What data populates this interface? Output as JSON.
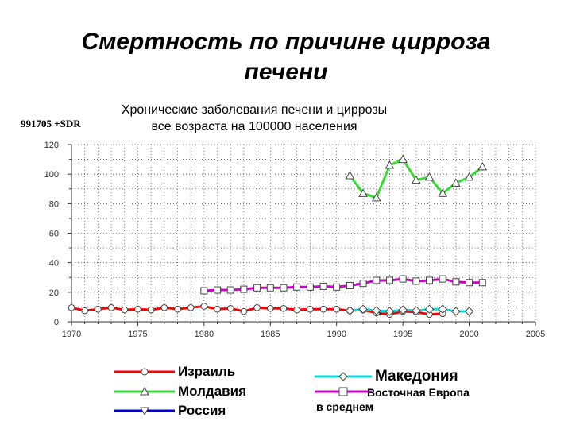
{
  "slide": {
    "title_line1": "Смертность по причине цирроза",
    "title_line2": "печени"
  },
  "code_label": "991705 +SDR",
  "chart_data": {
    "type": "line",
    "title_line1": "Хронические заболевания печени и циррозы",
    "title_line2": "все возраста на 100000 населения",
    "xlim": [
      1970,
      2005
    ],
    "ylim": [
      0,
      120
    ],
    "x_ticks": [
      1970,
      1975,
      1980,
      1985,
      1990,
      1995,
      2000,
      2005
    ],
    "y_ticks": [
      0,
      20,
      40,
      60,
      80,
      100,
      120
    ],
    "grid": true,
    "legend_position": "bottom",
    "series": [
      {
        "name": "Израиль",
        "color": "#ff0000",
        "marker": "circle",
        "points": [
          [
            1970,
            9.5
          ],
          [
            1971,
            7.5
          ],
          [
            1972,
            8.5
          ],
          [
            1973,
            9.5
          ],
          [
            1974,
            8
          ],
          [
            1975,
            8.5
          ],
          [
            1976,
            8
          ],
          [
            1977,
            9.5
          ],
          [
            1978,
            8.5
          ],
          [
            1979,
            9.5
          ],
          [
            1980,
            10.5
          ],
          [
            1981,
            8.5
          ],
          [
            1982,
            9
          ],
          [
            1983,
            7
          ],
          [
            1984,
            9.5
          ],
          [
            1985,
            9
          ],
          [
            1986,
            9
          ],
          [
            1987,
            8
          ],
          [
            1988,
            8.5
          ],
          [
            1989,
            8.5
          ],
          [
            1990,
            8.5
          ],
          [
            1991,
            7.5
          ],
          [
            1992,
            8
          ],
          [
            1993,
            6
          ],
          [
            1994,
            5
          ],
          [
            1995,
            7
          ],
          [
            1996,
            6.5
          ],
          [
            1997,
            5
          ],
          [
            1998,
            5.5
          ]
        ]
      },
      {
        "name": "Молдавия",
        "color": "#33dd33",
        "marker": "triangle-up",
        "points": [
          [
            1991,
            99
          ],
          [
            1992,
            87
          ],
          [
            1993,
            84
          ],
          [
            1994,
            106
          ],
          [
            1995,
            110
          ],
          [
            1996,
            96
          ],
          [
            1997,
            98
          ],
          [
            1998,
            87
          ],
          [
            1999,
            94
          ],
          [
            2000,
            98
          ],
          [
            2001,
            105
          ]
        ]
      },
      {
        "name": "Россия",
        "color": "#0000cc",
        "marker": "triangle-down",
        "points": []
      },
      {
        "name": "Македония",
        "color": "#00dddd",
        "marker": "diamond",
        "points": [
          [
            1991,
            7.5
          ],
          [
            1992,
            8.5
          ],
          [
            1993,
            7.5
          ],
          [
            1994,
            7
          ],
          [
            1995,
            8
          ],
          [
            1996,
            7.5
          ],
          [
            1997,
            8.5
          ],
          [
            1998,
            8.5
          ],
          [
            1999,
            7
          ],
          [
            2000,
            7
          ]
        ]
      },
      {
        "name_line1": "Восточная Европа",
        "name_line2": "в среднем",
        "color": "#cc00cc",
        "marker": "square",
        "points": [
          [
            1980,
            21
          ],
          [
            1981,
            21.5
          ],
          [
            1982,
            21.5
          ],
          [
            1983,
            22
          ],
          [
            1984,
            23
          ],
          [
            1985,
            23
          ],
          [
            1986,
            23
          ],
          [
            1987,
            23.5
          ],
          [
            1988,
            23.5
          ],
          [
            1989,
            24
          ],
          [
            1990,
            23.5
          ],
          [
            1991,
            24.5
          ],
          [
            1992,
            26
          ],
          [
            1993,
            28
          ],
          [
            1994,
            28
          ],
          [
            1995,
            29
          ],
          [
            1996,
            27.5
          ],
          [
            1997,
            28
          ],
          [
            1998,
            29
          ],
          [
            1999,
            27
          ],
          [
            2000,
            26.5
          ],
          [
            2001,
            26.5
          ]
        ]
      }
    ]
  }
}
